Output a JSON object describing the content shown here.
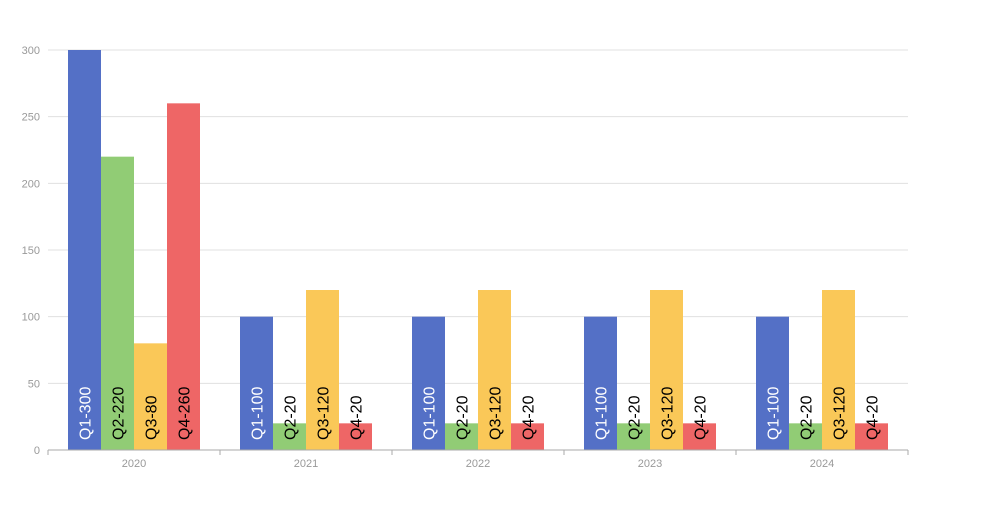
{
  "chart_data": {
    "type": "bar",
    "title": "",
    "xlabel": "",
    "ylabel": "",
    "ylim": [
      0,
      300
    ],
    "yticks": [
      0,
      50,
      100,
      150,
      200,
      250,
      300
    ],
    "grid": true,
    "legend": "none",
    "categories": [
      "2020",
      "2021",
      "2022",
      "2023",
      "2024"
    ],
    "series": [
      {
        "name": "Q1",
        "color": "#5470c6",
        "values": [
          300,
          100,
          100,
          100,
          100
        ],
        "labels": [
          "Q1-300",
          "Q1-100",
          "Q1-100",
          "Q1-100",
          "Q1-100"
        ]
      },
      {
        "name": "Q2",
        "color": "#91cc75",
        "values": [
          220,
          20,
          20,
          20,
          20
        ],
        "labels": [
          "Q2-220",
          "Q2-20",
          "Q2-20",
          "Q2-20",
          "Q2-20"
        ]
      },
      {
        "name": "Q3",
        "color": "#fac858",
        "values": [
          80,
          120,
          120,
          120,
          120
        ],
        "labels": [
          "Q3-80",
          "Q3-120",
          "Q3-120",
          "Q3-120",
          "Q3-120"
        ]
      },
      {
        "name": "Q4",
        "color": "#ee6666",
        "values": [
          260,
          20,
          20,
          20,
          20
        ],
        "labels": [
          "Q4-260",
          "Q4-20",
          "Q4-20",
          "Q4-20",
          "Q4-20"
        ]
      }
    ]
  }
}
